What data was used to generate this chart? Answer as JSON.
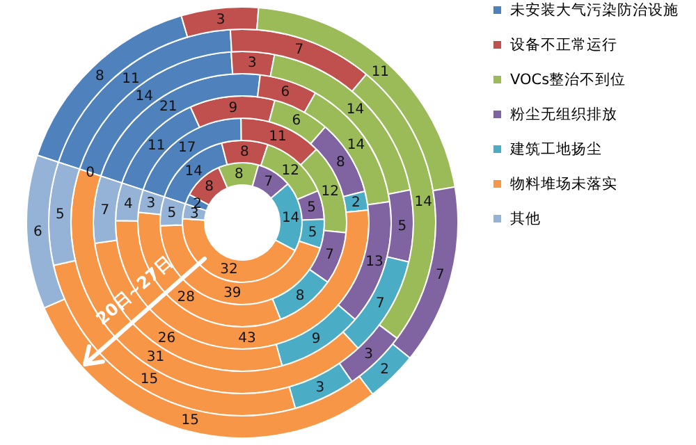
{
  "chart_data": {
    "type": "donut",
    "categories": [
      "未安装大气污染防治设施",
      "设备不正常运行",
      "VOCs整治不到位",
      "粉尘无组织排放",
      "建筑工地扬尘",
      "物料堆场未落实",
      "其他"
    ],
    "colors": [
      "#4f81bd",
      "#c0504d",
      "#9bbb59",
      "#8064a2",
      "#4bacc6",
      "#f79646",
      "#95b3d7"
    ],
    "series": [
      {
        "values": [
          2,
          8,
          8,
          7,
          14,
          32,
          3
        ]
      },
      {
        "values": [
          14,
          8,
          12,
          5,
          5,
          39,
          5
        ]
      },
      {
        "values": [
          17,
          11,
          12,
          7,
          8,
          28,
          3
        ]
      },
      {
        "values": [
          11,
          9,
          6,
          8,
          2,
          43,
          4
        ]
      },
      {
        "values": [
          21,
          6,
          14,
          13,
          9,
          26,
          7
        ]
      },
      {
        "values": [
          14,
          3,
          14,
          5,
          7,
          31,
          0
        ],
        "value_labels": [
          "14",
          "3",
          "14",
          "5",
          "7",
          "31",
          "0"
        ]
      },
      {
        "values": [
          11,
          7,
          14,
          3,
          3,
          15,
          5
        ]
      },
      {
        "values": [
          8,
          3,
          11,
          7,
          2,
          15,
          6
        ]
      }
    ],
    "data_labels": true,
    "legend": "right",
    "annotations": [
      "20日~27日"
    ]
  }
}
